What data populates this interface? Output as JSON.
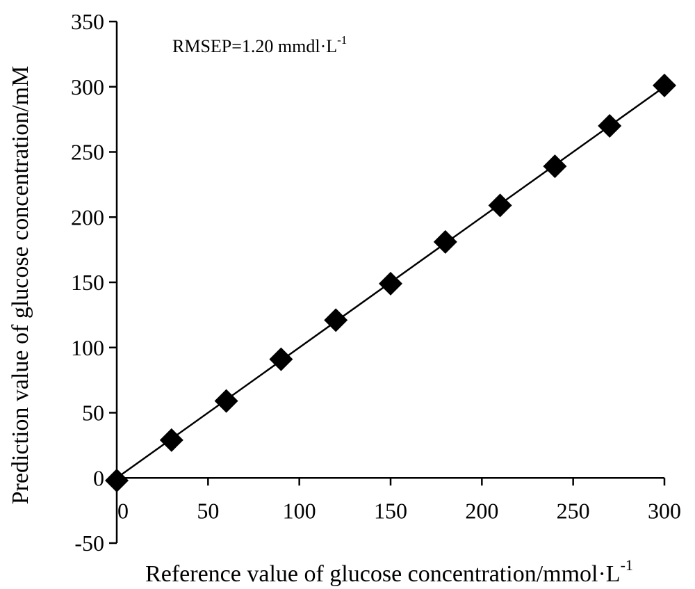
{
  "chart_data": {
    "type": "scatter",
    "xlabel": "Reference value of glucose concentration/mmol·L",
    "xlabel_sup": "-1",
    "ylabel": "Prediction value of glucose concentration/mM",
    "annotation": "RMSEP=1.20 mmdl·L",
    "annotation_sup": "-1",
    "xlim": [
      0,
      300
    ],
    "ylim": [
      -50,
      350
    ],
    "xticks": [
      0,
      50,
      100,
      150,
      200,
      250,
      300
    ],
    "yticks": [
      -50,
      0,
      50,
      100,
      150,
      200,
      250,
      300,
      350
    ],
    "grid": false,
    "marker": "diamond",
    "marker_color": "#000000",
    "fit_line": {
      "from": [
        0,
        0
      ],
      "to": [
        300,
        300
      ],
      "color": "#000000"
    },
    "points": [
      {
        "x": 0,
        "y": -2
      },
      {
        "x": 30,
        "y": 29
      },
      {
        "x": 60,
        "y": 59
      },
      {
        "x": 90,
        "y": 91
      },
      {
        "x": 120,
        "y": 121
      },
      {
        "x": 150,
        "y": 149
      },
      {
        "x": 180,
        "y": 181
      },
      {
        "x": 210,
        "y": 209
      },
      {
        "x": 240,
        "y": 239
      },
      {
        "x": 270,
        "y": 270
      },
      {
        "x": 300,
        "y": 301
      }
    ]
  }
}
